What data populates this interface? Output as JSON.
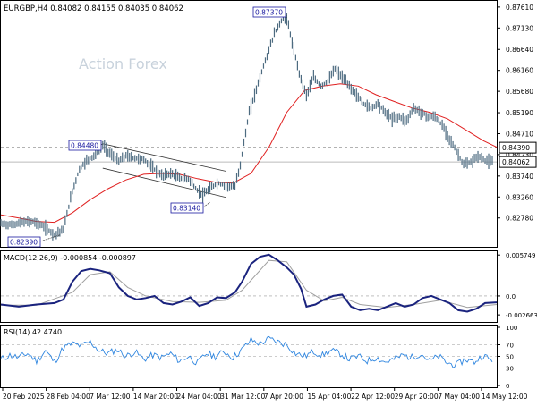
{
  "chart_data": [
    {
      "type": "line",
      "panel": "price",
      "header": "EURGBP,H4  0.84082 0.84155 0.84035 0.84062",
      "watermark": "Action Forex",
      "ylim": [
        0.8216,
        0.8771
      ],
      "y_ticks": [
        "0.87610",
        "0.87130",
        "0.86640",
        "0.86160",
        "0.85680",
        "0.85190",
        "0.84710",
        "0.84230",
        "0.83740",
        "0.83260",
        "0.82780"
      ],
      "x_ticks": [
        "20 Feb 2025",
        "28 Feb 04:00",
        "7 Mar 12:00",
        "14 Mar 20:00",
        "24 Mar 04:00",
        "31 Mar 12:00",
        "7 Apr 20:00",
        "15 Apr 04:00",
        "22 Apr 12:00",
        "29 Apr 20:00",
        "7 May 04:00",
        "14 May 12:00"
      ],
      "price_series": [
        [
          0,
          0.8265
        ],
        [
          12,
          0.8262
        ],
        [
          24,
          0.8268
        ],
        [
          36,
          0.827
        ],
        [
          48,
          0.8258
        ],
        [
          60,
          0.824
        ],
        [
          70,
          0.8252
        ],
        [
          80,
          0.834
        ],
        [
          88,
          0.839
        ],
        [
          96,
          0.841
        ],
        [
          104,
          0.842
        ],
        [
          114,
          0.8445
        ],
        [
          122,
          0.8425
        ],
        [
          132,
          0.8408
        ],
        [
          140,
          0.842
        ],
        [
          150,
          0.8415
        ],
        [
          160,
          0.8412
        ],
        [
          170,
          0.8392
        ],
        [
          180,
          0.8375
        ],
        [
          190,
          0.838
        ],
        [
          200,
          0.837
        ],
        [
          210,
          0.8368
        ],
        [
          218,
          0.8345
        ],
        [
          226,
          0.833
        ],
        [
          234,
          0.8345
        ],
        [
          242,
          0.8358
        ],
        [
          252,
          0.8352
        ],
        [
          262,
          0.835
        ],
        [
          268,
          0.84
        ],
        [
          272,
          0.845
        ],
        [
          278,
          0.852
        ],
        [
          284,
          0.856
        ],
        [
          290,
          0.86
        ],
        [
          298,
          0.865
        ],
        [
          306,
          0.87
        ],
        [
          314,
          0.873
        ],
        [
          320,
          0.8737
        ],
        [
          326,
          0.868
        ],
        [
          334,
          0.861
        ],
        [
          342,
          0.856
        ],
        [
          350,
          0.86
        ],
        [
          358,
          0.858
        ],
        [
          366,
          0.859
        ],
        [
          374,
          0.862
        ],
        [
          382,
          0.86
        ],
        [
          390,
          0.858
        ],
        [
          398,
          0.856
        ],
        [
          406,
          0.854
        ],
        [
          414,
          0.853
        ],
        [
          422,
          0.854
        ],
        [
          430,
          0.852
        ],
        [
          438,
          0.8505
        ],
        [
          446,
          0.851
        ],
        [
          454,
          0.85
        ],
        [
          462,
          0.853
        ],
        [
          470,
          0.852
        ],
        [
          478,
          0.851
        ],
        [
          486,
          0.851
        ],
        [
          494,
          0.849
        ],
        [
          502,
          0.846
        ],
        [
          510,
          0.843
        ],
        [
          518,
          0.84
        ],
        [
          526,
          0.8405
        ],
        [
          534,
          0.842
        ],
        [
          542,
          0.841
        ],
        [
          550,
          0.8406
        ]
      ],
      "ma_series": [
        [
          0,
          0.8285
        ],
        [
          20,
          0.8278
        ],
        [
          40,
          0.827
        ],
        [
          60,
          0.8268
        ],
        [
          80,
          0.829
        ],
        [
          100,
          0.832
        ],
        [
          120,
          0.8345
        ],
        [
          140,
          0.8365
        ],
        [
          160,
          0.8378
        ],
        [
          180,
          0.838
        ],
        [
          200,
          0.8378
        ],
        [
          220,
          0.8368
        ],
        [
          240,
          0.836
        ],
        [
          260,
          0.8358
        ],
        [
          280,
          0.838
        ],
        [
          300,
          0.844
        ],
        [
          320,
          0.852
        ],
        [
          340,
          0.857
        ],
        [
          360,
          0.858
        ],
        [
          380,
          0.8585
        ],
        [
          400,
          0.858
        ],
        [
          420,
          0.856
        ],
        [
          440,
          0.8545
        ],
        [
          460,
          0.853
        ],
        [
          480,
          0.852
        ],
        [
          500,
          0.8505
        ],
        [
          520,
          0.848
        ],
        [
          540,
          0.8455
        ],
        [
          555,
          0.844
        ]
      ],
      "hlines": [
        {
          "value": 0.8439,
          "label": "0.84390",
          "style": "dashed"
        },
        {
          "value": 0.84062,
          "label": "0.84062",
          "style": "solid"
        }
      ],
      "annotations": [
        {
          "label": "0.87370",
          "value": 0.8737
        },
        {
          "label": "0.84480",
          "value": 0.8448
        },
        {
          "label": "0.83140",
          "value": 0.8314
        },
        {
          "label": "0.82390",
          "value": 0.8239
        }
      ],
      "channel": [
        {
          "from": [
            114,
            0.8448
          ],
          "to": [
            252,
            0.8385
          ]
        },
        {
          "from": [
            114,
            0.8392
          ],
          "to": [
            252,
            0.8325
          ]
        }
      ],
      "colors": {
        "price": "#4d6b80",
        "ma": "#e02020",
        "label_text": "#1a1aa0"
      }
    },
    {
      "type": "line",
      "panel": "macd",
      "header": "MACD(12,26,9) -0.000854 -0.000897",
      "ylim": [
        -0.0034,
        0.0059
      ],
      "y_ticks": [
        "0.005749",
        "0.0",
        "-0.002663"
      ],
      "macd_series": [
        [
          0,
          -0.0012
        ],
        [
          20,
          -0.0015
        ],
        [
          40,
          -0.0012
        ],
        [
          60,
          -0.001
        ],
        [
          70,
          -0.0005
        ],
        [
          80,
          0.002
        ],
        [
          90,
          0.0035
        ],
        [
          100,
          0.0038
        ],
        [
          110,
          0.0036
        ],
        [
          122,
          0.0032
        ],
        [
          132,
          0.0012
        ],
        [
          142,
          0.0
        ],
        [
          152,
          -0.0005
        ],
        [
          162,
          -0.0003
        ],
        [
          172,
          0.0
        ],
        [
          182,
          -0.001
        ],
        [
          192,
          -0.0012
        ],
        [
          202,
          -0.0008
        ],
        [
          212,
          -0.0002
        ],
        [
          222,
          -0.0014
        ],
        [
          232,
          -0.001
        ],
        [
          242,
          -0.0002
        ],
        [
          252,
          -0.0003
        ],
        [
          262,
          0.0005
        ],
        [
          270,
          0.002
        ],
        [
          280,
          0.0045
        ],
        [
          290,
          0.0055
        ],
        [
          300,
          0.0058
        ],
        [
          310,
          0.005
        ],
        [
          320,
          0.004
        ],
        [
          328,
          0.003
        ],
        [
          336,
          0.001
        ],
        [
          342,
          -0.0015
        ],
        [
          352,
          -0.0012
        ],
        [
          362,
          -0.0005
        ],
        [
          372,
          0.0
        ],
        [
          382,
          0.0002
        ],
        [
          392,
          -0.0015
        ],
        [
          402,
          -0.002
        ],
        [
          412,
          -0.0018
        ],
        [
          422,
          -0.002
        ],
        [
          432,
          -0.0015
        ],
        [
          442,
          -0.001
        ],
        [
          452,
          -0.0015
        ],
        [
          462,
          -0.0012
        ],
        [
          472,
          -0.0003
        ],
        [
          482,
          0.0
        ],
        [
          492,
          -0.0005
        ],
        [
          502,
          -0.001
        ],
        [
          512,
          -0.002
        ],
        [
          522,
          -0.0022
        ],
        [
          532,
          -0.0018
        ],
        [
          542,
          -0.001
        ],
        [
          555,
          -0.0009
        ]
      ],
      "signal_series": [
        [
          0,
          -0.0013
        ],
        [
          40,
          -0.0013
        ],
        [
          80,
          0.0005
        ],
        [
          100,
          0.003
        ],
        [
          122,
          0.0034
        ],
        [
          142,
          0.0012
        ],
        [
          162,
          0.0
        ],
        [
          192,
          -0.0008
        ],
        [
          222,
          -0.0009
        ],
        [
          252,
          -0.0006
        ],
        [
          270,
          0.0008
        ],
        [
          300,
          0.005
        ],
        [
          320,
          0.0048
        ],
        [
          342,
          0.0008
        ],
        [
          362,
          -0.0007
        ],
        [
          382,
          -0.0002
        ],
        [
          402,
          -0.0012
        ],
        [
          432,
          -0.0016
        ],
        [
          462,
          -0.0012
        ],
        [
          492,
          -0.0006
        ],
        [
          522,
          -0.0016
        ],
        [
          555,
          -0.0012
        ]
      ],
      "zero_label": "0.0",
      "colors": {
        "macd": "#1a237e",
        "signal": "#a0a0a0"
      }
    },
    {
      "type": "line",
      "panel": "rsi",
      "header": "RSI(14) 42.4740",
      "ylim": [
        0,
        100
      ],
      "y_ticks": [
        "100",
        "70",
        "50",
        "30",
        "0"
      ],
      "rsi_series": [
        [
          0,
          45
        ],
        [
          10,
          52
        ],
        [
          20,
          48
        ],
        [
          30,
          55
        ],
        [
          40,
          42
        ],
        [
          50,
          60
        ],
        [
          60,
          40
        ],
        [
          70,
          65
        ],
        [
          80,
          72
        ],
        [
          90,
          68
        ],
        [
          100,
          75
        ],
        [
          110,
          60
        ],
        [
          120,
          55
        ],
        [
          130,
          62
        ],
        [
          140,
          50
        ],
        [
          150,
          58
        ],
        [
          160,
          45
        ],
        [
          170,
          52
        ],
        [
          180,
          48
        ],
        [
          190,
          55
        ],
        [
          200,
          42
        ],
        [
          210,
          50
        ],
        [
          220,
          38
        ],
        [
          230,
          55
        ],
        [
          240,
          50
        ],
        [
          250,
          58
        ],
        [
          260,
          48
        ],
        [
          270,
          62
        ],
        [
          280,
          78
        ],
        [
          290,
          72
        ],
        [
          300,
          80
        ],
        [
          310,
          75
        ],
        [
          320,
          70
        ],
        [
          330,
          55
        ],
        [
          340,
          50
        ],
        [
          350,
          58
        ],
        [
          360,
          52
        ],
        [
          370,
          60
        ],
        [
          380,
          55
        ],
        [
          390,
          45
        ],
        [
          400,
          50
        ],
        [
          410,
          42
        ],
        [
          420,
          48
        ],
        [
          430,
          40
        ],
        [
          440,
          45
        ],
        [
          450,
          52
        ],
        [
          460,
          48
        ],
        [
          470,
          55
        ],
        [
          480,
          42
        ],
        [
          490,
          50
        ],
        [
          500,
          38
        ],
        [
          510,
          35
        ],
        [
          520,
          45
        ],
        [
          530,
          40
        ],
        [
          540,
          52
        ],
        [
          550,
          42
        ]
      ],
      "colors": {
        "rsi": "#2f86e0",
        "guide": "#999999"
      }
    }
  ]
}
